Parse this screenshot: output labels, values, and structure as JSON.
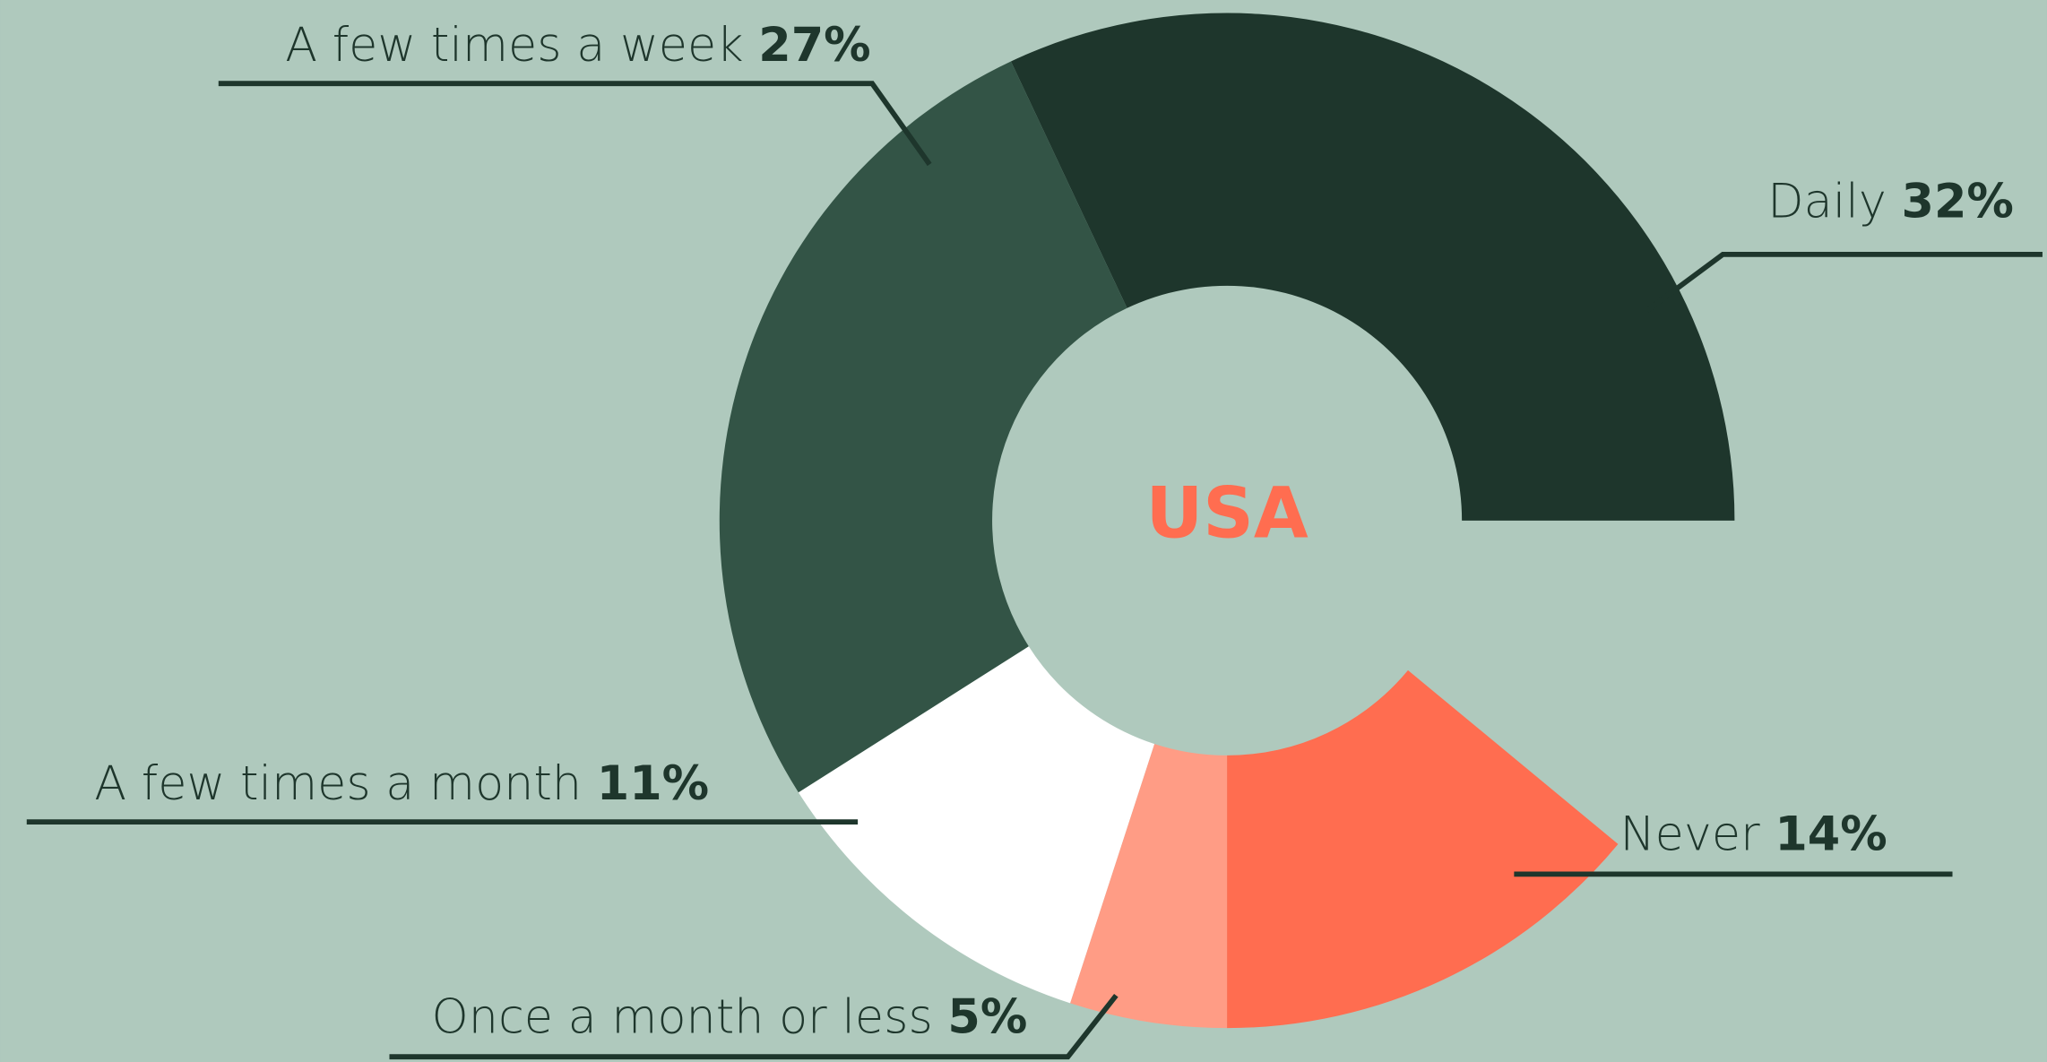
{
  "chart_data": {
    "type": "donut",
    "center_label": "USA",
    "categories": [
      "Daily",
      "A few times a week",
      "A few times a month",
      "Once a month or less",
      "Never"
    ],
    "values": [
      32,
      27,
      11,
      5,
      14
    ],
    "value_labels": [
      "32%",
      "27%",
      "11%",
      "5%",
      "14%"
    ],
    "colors": [
      "#1e362c",
      "#335446",
      "#ffffff",
      "#ff9c85",
      "#ff6d50"
    ]
  }
}
